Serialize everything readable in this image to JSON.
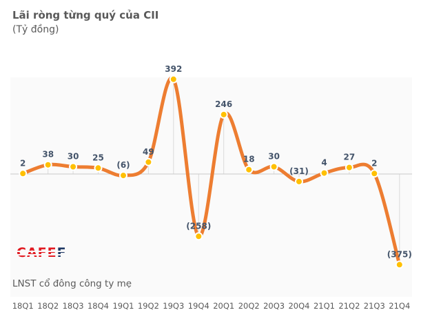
{
  "header": {
    "title": "Lãi ròng từng quý của CII",
    "subtitle": "(Tỷ đồng)"
  },
  "footer": {
    "series_note": "LNST cổ đông công ty mẹ"
  },
  "logo": {
    "part1": "CAFE",
    "part2": "F"
  },
  "colors": {
    "line": "#ED7D31",
    "marker": "#FFC000",
    "marker_border": "#FFFFFF",
    "data_label": "#44546A",
    "axis_line": "#C9C9C9",
    "drop_line": "#DBDBDB",
    "text": "#595959",
    "plot_bg": "#FAFAFA",
    "logo_red": "#E11B22",
    "logo_navy": "#1F3864"
  },
  "chart_data": {
    "type": "line",
    "title": "Lãi ròng từng quý của CII",
    "subtitle": "(Tỷ đồng)",
    "ylabel": "Tỷ đồng",
    "series_name": "LNST cổ đông công ty mẹ",
    "x": [
      "18Q1",
      "18Q2",
      "18Q3",
      "18Q4",
      "19Q1",
      "19Q2",
      "19Q3",
      "19Q4",
      "20Q1",
      "20Q2",
      "20Q3",
      "20Q4",
      "21Q1",
      "21Q2",
      "21Q3",
      "21Q4"
    ],
    "values": [
      2,
      38,
      30,
      25,
      -6,
      49,
      392,
      -258,
      246,
      18,
      30,
      -31,
      4,
      27,
      2,
      -375
    ],
    "labels": [
      "2",
      "38",
      "30",
      "25",
      "(6)",
      "49",
      "392",
      "(258)",
      "246",
      "18",
      "30",
      "(31)",
      "4",
      "27",
      "2",
      "(375)"
    ],
    "smooth": true,
    "markers": "circle",
    "drop_lines": true,
    "grid": false,
    "legend": "none",
    "zero_axis": true,
    "ylim": [
      -510,
      400
    ]
  }
}
